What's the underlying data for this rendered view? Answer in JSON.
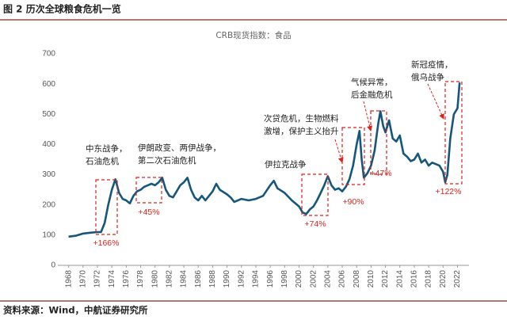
{
  "header": {
    "title": "图 2 历次全球粮食危机一览"
  },
  "chart_data": {
    "type": "line",
    "title": "CRB现货指数：食品",
    "xlim": [
      1966.5,
      2023.6
    ],
    "ylim": [
      0,
      700
    ],
    "xticks": [
      1968,
      1970,
      1972,
      1974,
      1976,
      1978,
      1980,
      1982,
      1984,
      1986,
      1988,
      1990,
      1992,
      1994,
      1996,
      1998,
      2000,
      2002,
      2004,
      2006,
      2008,
      2010,
      2012,
      2014,
      2016,
      2018,
      2020,
      2022
    ],
    "yticks": [
      0,
      100,
      200,
      300,
      400,
      500,
      600,
      700
    ],
    "grid": false,
    "series": [
      {
        "color": "#15577a",
        "x": [
          1968,
          1969,
          1970,
          1971,
          1972,
          1972.5,
          1973,
          1973.5,
          1974,
          1974.5,
          1975,
          1975.5,
          1976,
          1976.5,
          1977,
          1977.5,
          1978,
          1978.5,
          1979,
          1979.5,
          1980,
          1980.5,
          1981,
          1981.5,
          1982,
          1982.5,
          1983,
          1983.5,
          1984,
          1984.5,
          1985,
          1985.5,
          1986,
          1986.5,
          1987,
          1988,
          1988.5,
          1989,
          1990,
          1990.5,
          1991,
          1992,
          1993,
          1994,
          1995,
          1996,
          1996.5,
          1997,
          1998,
          1999,
          2000,
          2000.5,
          2001,
          2001.5,
          2002,
          2002.5,
          2003,
          2003.5,
          2004,
          2004.5,
          2005,
          2005.5,
          2006,
          2006.5,
          2007,
          2007.5,
          2008,
          2008.4,
          2008.7,
          2009,
          2009.5,
          2010,
          2010.5,
          2011,
          2011.3,
          2011.7,
          2012,
          2012.5,
          2013,
          2013.5,
          2014,
          2014.5,
          2015,
          2015.5,
          2016,
          2016.5,
          2017,
          2017.5,
          2018,
          2018.5,
          2019,
          2019.5,
          2020,
          2020.3,
          2020.6,
          2021,
          2021.5,
          2022,
          2022.3
        ],
        "values": [
          95,
          98,
          105,
          108,
          110,
          110,
          140,
          200,
          250,
          285,
          240,
          220,
          215,
          205,
          230,
          245,
          250,
          260,
          265,
          270,
          265,
          275,
          290,
          250,
          230,
          225,
          245,
          265,
          275,
          290,
          250,
          225,
          215,
          230,
          215,
          245,
          270,
          250,
          235,
          225,
          210,
          220,
          215,
          220,
          230,
          265,
          280,
          255,
          240,
          215,
          195,
          175,
          170,
          185,
          195,
          215,
          240,
          265,
          295,
          265,
          250,
          255,
          245,
          260,
          285,
          330,
          400,
          445,
          350,
          290,
          305,
          330,
          380,
          470,
          510,
          460,
          440,
          480,
          420,
          410,
          430,
          370,
          360,
          345,
          350,
          370,
          340,
          350,
          330,
          340,
          335,
          330,
          310,
          275,
          300,
          420,
          500,
          520,
          605
        ]
      }
    ],
    "annotations": [
      {
        "text": [
          "中东战争，",
          "石油危机"
        ],
        "change": "+166%"
      },
      {
        "text": [
          "伊朗政变、两伊战争，",
          "第二次石油危机"
        ],
        "change": "+45%"
      },
      {
        "text": [
          "伊拉克战争"
        ],
        "change": "+74%"
      },
      {
        "text": [
          "次贷危机，生物燃料",
          "激增，保护主义抬升"
        ],
        "change": "+90%"
      },
      {
        "text": [
          "气候异常，",
          "后金融危机"
        ],
        "change": "+47%"
      },
      {
        "text": [
          "新冠疫情，",
          "俄乌战争"
        ],
        "change": "+122%"
      }
    ]
  },
  "footer": {
    "source": "资料来源：Wind，中航证券研究所"
  }
}
